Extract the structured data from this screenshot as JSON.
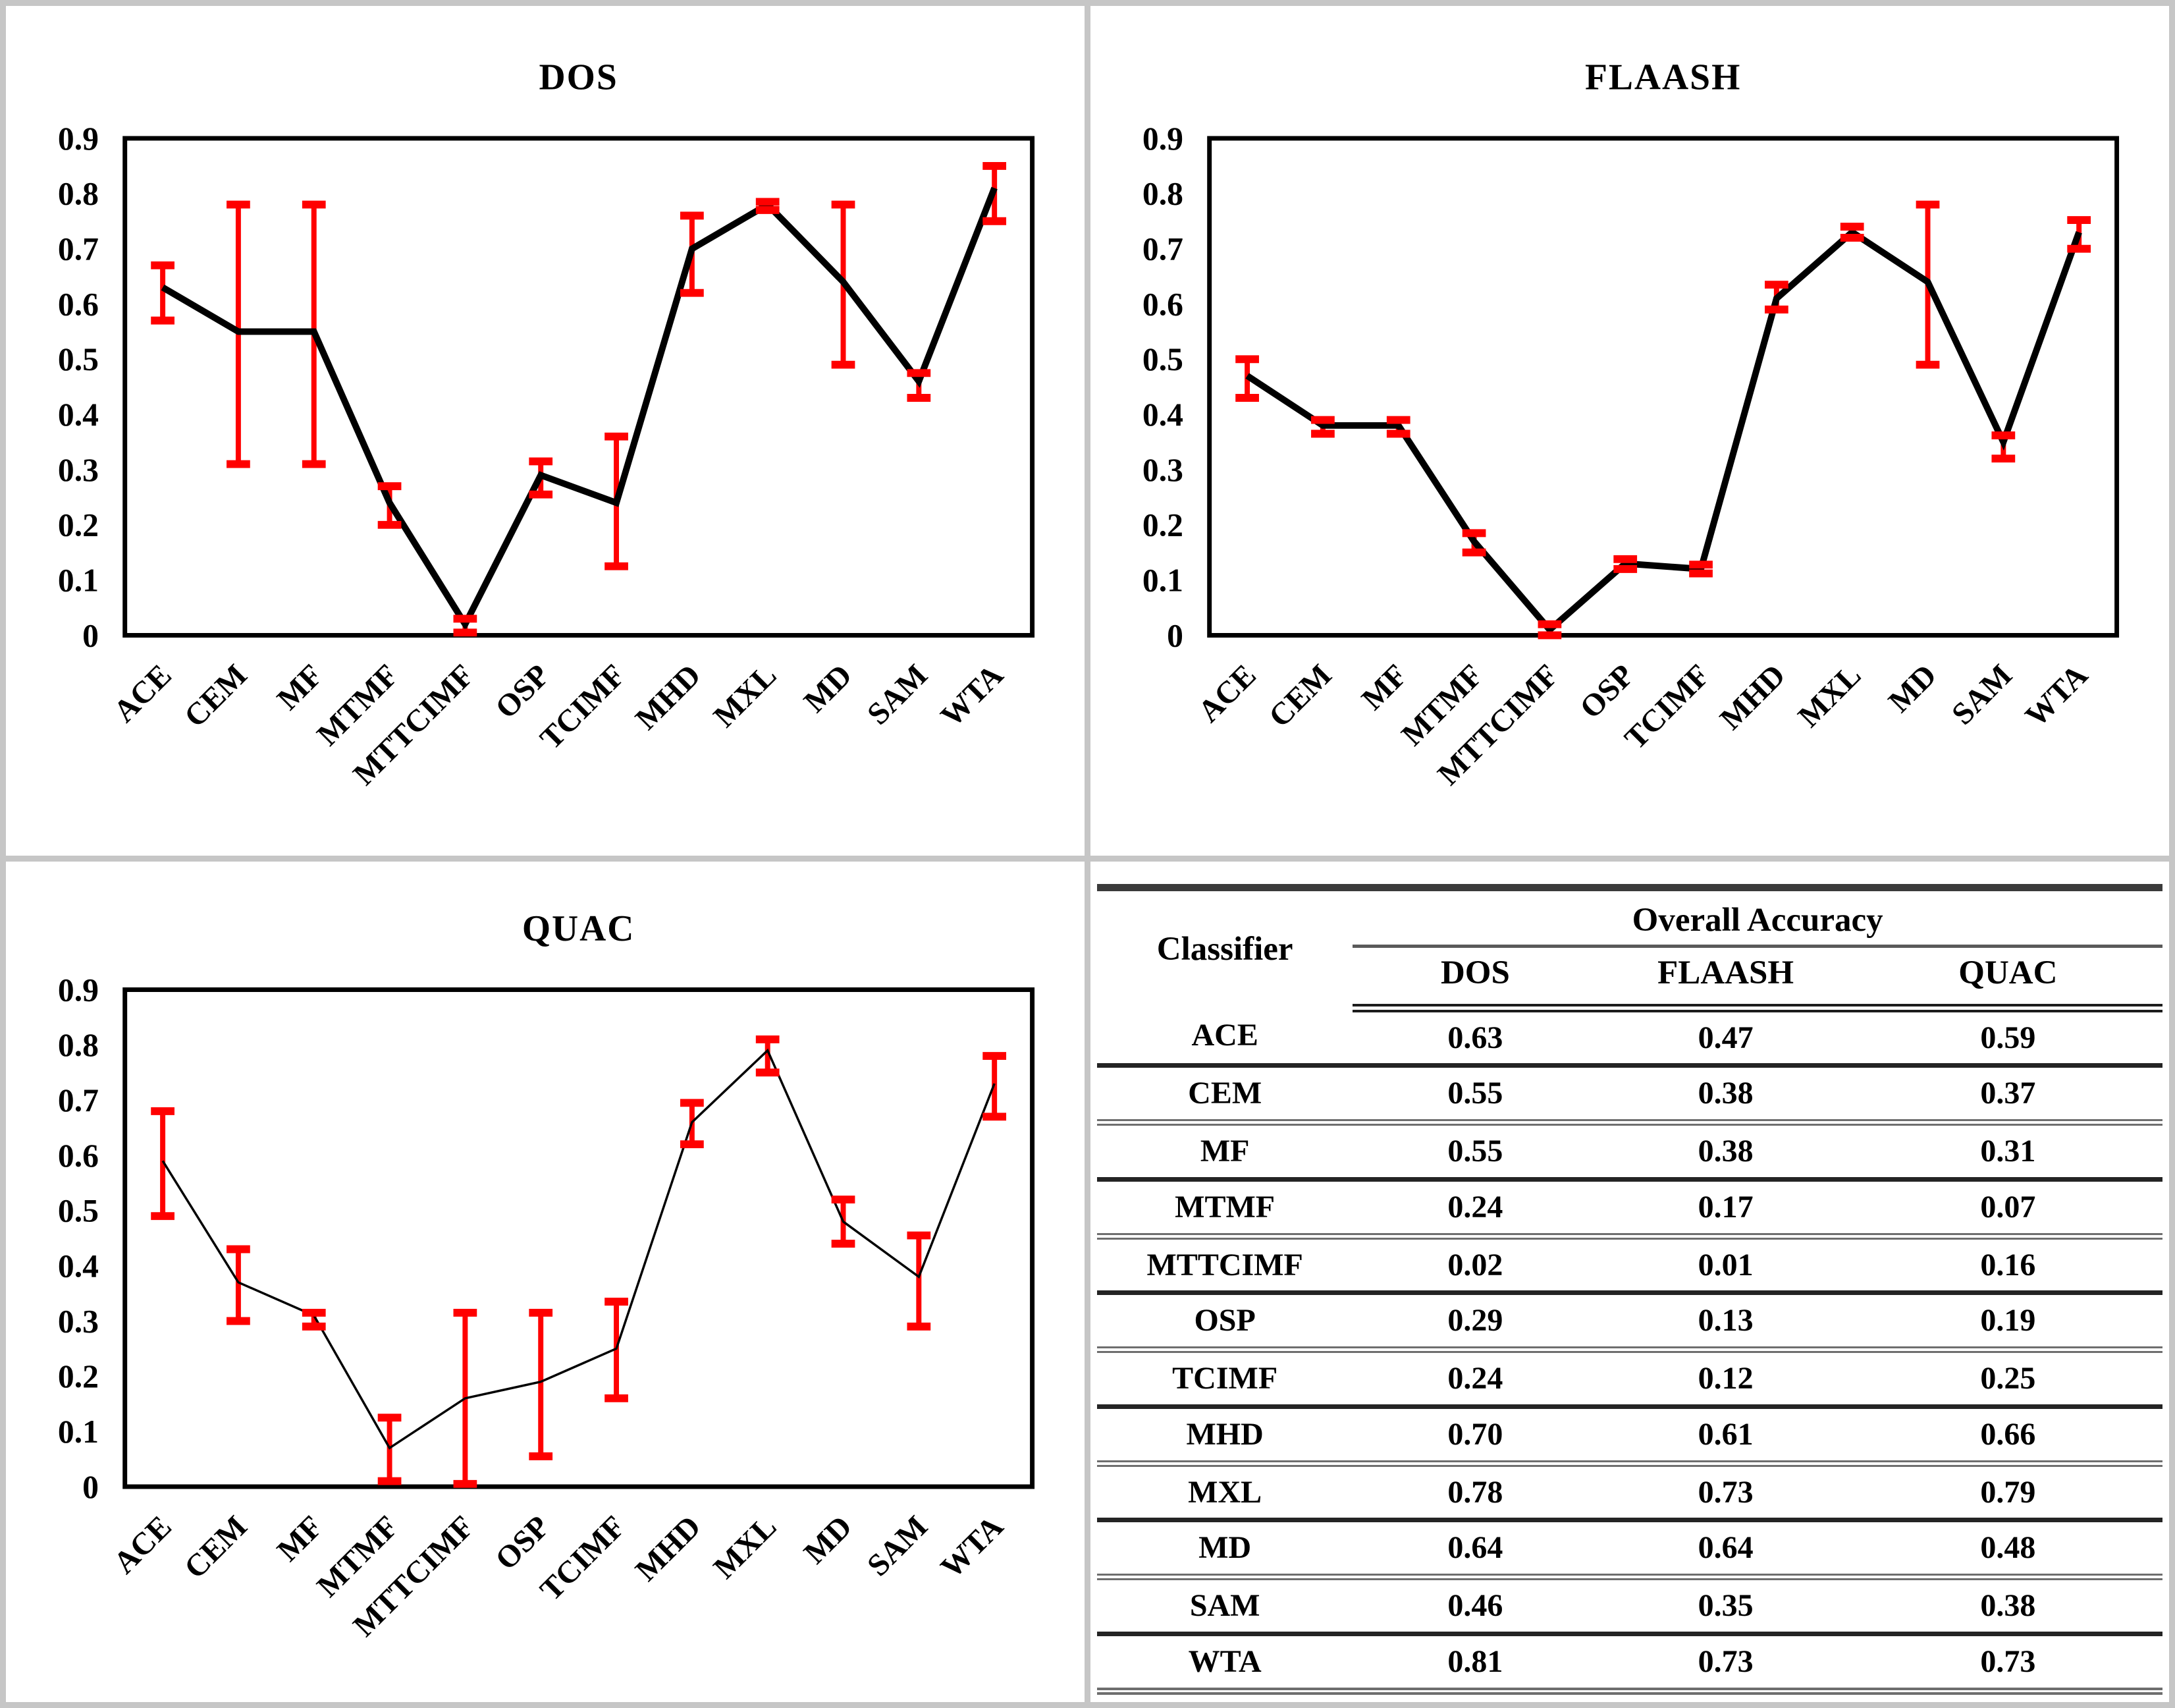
{
  "chart_data": {
    "type": "line",
    "categories": [
      "ACE",
      "CEM",
      "MF",
      "MTMF",
      "MTTCIMF",
      "OSP",
      "TCIMF",
      "MHD",
      "MXL",
      "MD",
      "SAM",
      "WTA"
    ],
    "ylim": [
      0,
      0.9
    ],
    "ytick_step": 0.1,
    "grid": false,
    "legend": false,
    "line_color": "#000000",
    "error_bar_color": "#ff0000",
    "charts": [
      {
        "title": "DOS",
        "line_width": 10,
        "values": [
          0.63,
          0.55,
          0.55,
          0.24,
          0.02,
          0.29,
          0.24,
          0.7,
          0.78,
          0.64,
          0.46,
          0.81
        ],
        "err_low": [
          0.57,
          0.31,
          0.31,
          0.2,
          0.005,
          0.255,
          0.125,
          0.62,
          0.77,
          0.49,
          0.43,
          0.75
        ],
        "err_high": [
          0.67,
          0.78,
          0.78,
          0.27,
          0.03,
          0.315,
          0.36,
          0.76,
          0.785,
          0.78,
          0.475,
          0.85
        ]
      },
      {
        "title": "FLAASH",
        "line_width": 10,
        "values": [
          0.47,
          0.38,
          0.38,
          0.17,
          0.01,
          0.13,
          0.12,
          0.61,
          0.73,
          0.64,
          0.35,
          0.73
        ],
        "err_low": [
          0.43,
          0.365,
          0.365,
          0.15,
          0.0,
          0.12,
          0.112,
          0.59,
          0.72,
          0.49,
          0.32,
          0.7
        ],
        "err_high": [
          0.5,
          0.39,
          0.39,
          0.185,
          0.02,
          0.138,
          0.128,
          0.635,
          0.74,
          0.78,
          0.362,
          0.752
        ]
      },
      {
        "title": "QUAC",
        "line_width": 3.5,
        "values": [
          0.59,
          0.37,
          0.31,
          0.07,
          0.16,
          0.19,
          0.25,
          0.66,
          0.79,
          0.48,
          0.38,
          0.73
        ],
        "err_low": [
          0.49,
          0.3,
          0.29,
          0.01,
          0.005,
          0.055,
          0.16,
          0.62,
          0.75,
          0.44,
          0.29,
          0.67
        ],
        "err_high": [
          0.68,
          0.43,
          0.315,
          0.125,
          0.315,
          0.315,
          0.335,
          0.695,
          0.81,
          0.52,
          0.455,
          0.78
        ]
      }
    ],
    "table": {
      "title_column": "Classifier",
      "group_header": "Overall Accuracy",
      "columns": [
        "DOS",
        "FLAASH",
        "QUAC"
      ],
      "rows": [
        [
          "ACE",
          "0.63",
          "0.47",
          "0.59"
        ],
        [
          "CEM",
          "0.55",
          "0.38",
          "0.37"
        ],
        [
          "MF",
          "0.55",
          "0.38",
          "0.31"
        ],
        [
          "MTMF",
          "0.24",
          "0.17",
          "0.07"
        ],
        [
          "MTTCIMF",
          "0.02",
          "0.01",
          "0.16"
        ],
        [
          "OSP",
          "0.29",
          "0.13",
          "0.19"
        ],
        [
          "TCIMF",
          "0.24",
          "0.12",
          "0.25"
        ],
        [
          "MHD",
          "0.70",
          "0.61",
          "0.66"
        ],
        [
          "MXL",
          "0.78",
          "0.73",
          "0.79"
        ],
        [
          "MD",
          "0.64",
          "0.64",
          "0.48"
        ],
        [
          "SAM",
          "0.46",
          "0.35",
          "0.38"
        ],
        [
          "WTA",
          "0.81",
          "0.73",
          "0.73"
        ]
      ]
    }
  }
}
